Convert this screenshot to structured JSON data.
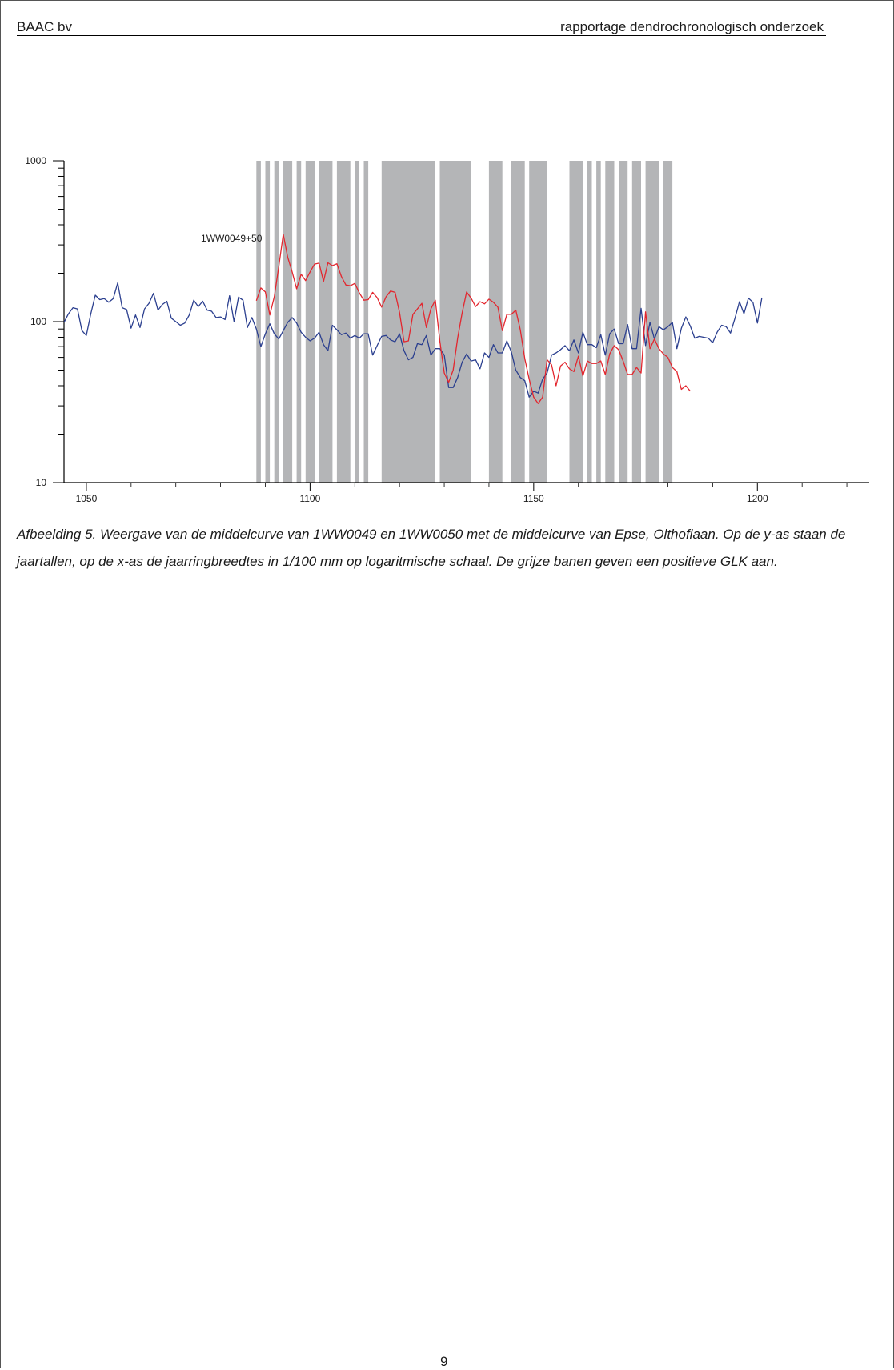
{
  "header": {
    "left": "BAAC bv",
    "right": "rapportage dendrochronologisch onderzoek"
  },
  "caption": "Afbeelding 5. Weergave van de middelcurve van 1WW0049 en 1WW0050 met de middelcurve van Epse, Olthoflaan. Op de y-as staan de jaartallen, op de x-as de jaarringbreedtes in 1/100 mm op logaritmische schaal. De grijze banen geven een positieve GLK aan.",
  "page_number": "9",
  "colors": {
    "bands": "#b4b5b7",
    "series_blue": "#2b3f8f",
    "series_red": "#e3262e",
    "axis": "#000000"
  },
  "chart_data": {
    "type": "line",
    "title": "",
    "xlabel": "",
    "ylabel": "",
    "y_scale": "log",
    "xlim": [
      1045,
      1225
    ],
    "ylim": [
      10,
      1000
    ],
    "x_ticks": [
      1050,
      1100,
      1150,
      1200
    ],
    "y_ticks": [
      10,
      100,
      1000
    ],
    "annotation": "1WW0049+50",
    "grid": false,
    "legend": "none",
    "highlight_bands": [
      [
        1088,
        1089
      ],
      [
        1090,
        1091
      ],
      [
        1092,
        1093
      ],
      [
        1094,
        1096
      ],
      [
        1097,
        1098
      ],
      [
        1099,
        1101
      ],
      [
        1102,
        1105
      ],
      [
        1106,
        1109
      ],
      [
        1110,
        1111
      ],
      [
        1112,
        1113
      ],
      [
        1116,
        1128
      ],
      [
        1129,
        1136
      ],
      [
        1140,
        1143
      ],
      [
        1145,
        1148
      ],
      [
        1149,
        1153
      ],
      [
        1158,
        1161
      ],
      [
        1162,
        1163
      ],
      [
        1164,
        1165
      ],
      [
        1166,
        1168
      ],
      [
        1169,
        1171
      ],
      [
        1172,
        1174
      ],
      [
        1175,
        1178
      ],
      [
        1179,
        1181
      ]
    ],
    "series": [
      {
        "x_start": 1045,
        "values": [
          99,
          112,
          122,
          120,
          88,
          82,
          112,
          146,
          137,
          139,
          132,
          139,
          174,
          122,
          119,
          91,
          110,
          92,
          120,
          130,
          150,
          118,
          128,
          134,
          105,
          100,
          95,
          98,
          110,
          136,
          124,
          134,
          118,
          116,
          106,
          107,
          103,
          145,
          100,
          142,
          136,
          92,
          106,
          90,
          70,
          84,
          97,
          84,
          78,
          88,
          99,
          106,
          98,
          86,
          80,
          76,
          79,
          86,
          72,
          66,
          95,
          89,
          83,
          85,
          79,
          82,
          79,
          84,
          84,
          62,
          71,
          81,
          82,
          77,
          75,
          84,
          66,
          58,
          60,
          73,
          72,
          82,
          62,
          68,
          68,
          62,
          39,
          39,
          45,
          56,
          63,
          57,
          58,
          51,
          64,
          60,
          72,
          64,
          64,
          76,
          65,
          50,
          45,
          43,
          34,
          37,
          36,
          44,
          48,
          62,
          64,
          67,
          71,
          66,
          77,
          64,
          86,
          72,
          72,
          69,
          83,
          62,
          84,
          90,
          73,
          73,
          96,
          68,
          68,
          121,
          71,
          99,
          78,
          93,
          89,
          93,
          99,
          68,
          91,
          107,
          94,
          79,
          81,
          80,
          79,
          74,
          86,
          95,
          93,
          85,
          105,
          133,
          112,
          140,
          132,
          98,
          141
        ]
      },
      {
        "x_start": 1088,
        "values": [
          135,
          162,
          153,
          110,
          143,
          220,
          349,
          252,
          204,
          160,
          197,
          180,
          204,
          228,
          231,
          178,
          232,
          223,
          229,
          191,
          169,
          167,
          173,
          151,
          136,
          137,
          152,
          141,
          123,
          143,
          155,
          152,
          114,
          75,
          76,
          111,
          120,
          130,
          92,
          120,
          136,
          76,
          48,
          42,
          50,
          79,
          113,
          153,
          140,
          124,
          133,
          129,
          138,
          132,
          123,
          88,
          111,
          111,
          118,
          89,
          59,
          44,
          34,
          31,
          34,
          58,
          54,
          40,
          53,
          56,
          51,
          49,
          61,
          46,
          57,
          55,
          55,
          57,
          47,
          63,
          71,
          67,
          57,
          47,
          47,
          52,
          48,
          115,
          68,
          78,
          68,
          63,
          60,
          52,
          49,
          38,
          40,
          37
        ]
      }
    ]
  }
}
